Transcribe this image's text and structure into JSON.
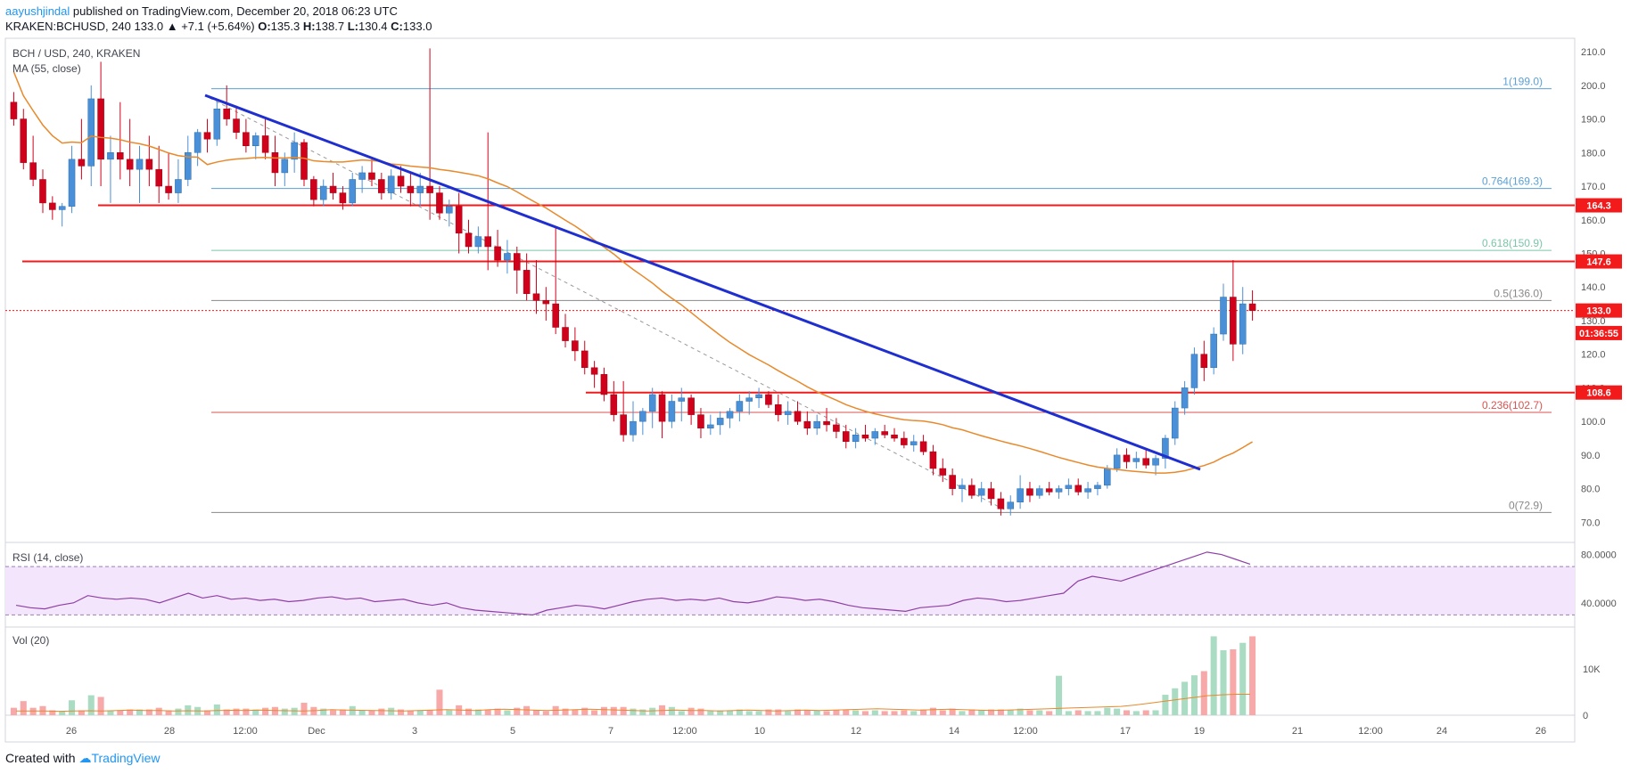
{
  "header": {
    "author": "aayushjindal",
    "published_text": " published on TradingView.com, December 20, 2018 06:23 UTC",
    "symbol": "KRAKEN:BCHUSD, 240",
    "last": "133.0",
    "change_arrow": "▲",
    "change": "+7.1 (+5.64%)",
    "ohlc_o_label": "O:",
    "ohlc_o": "135.3",
    "ohlc_h_label": "H:",
    "ohlc_h": "138.7",
    "ohlc_l_label": "L:",
    "ohlc_l": "130.4",
    "ohlc_c_label": "C:",
    "ohlc_c": "133.0"
  },
  "legend": {
    "pair": "BCH / USD, 240, KRAKEN",
    "ma": "MA (55, close)",
    "rsi": "RSI (14, close)",
    "vol": "Vol (20)"
  },
  "footer": {
    "created_with": "Created with",
    "brand": "TradingView"
  },
  "colors": {
    "up": "#4a90d9",
    "down": "#d0021b",
    "ma": "#e8892b",
    "trendline": "#1f2fcf",
    "resistance": "#f21a1a",
    "fib_blue": "#5aa1d6",
    "fib_green": "#7ac6a8",
    "fib_red": "#d9534f",
    "fib_grey": "#888888",
    "rsi_band": "#f3e5fb",
    "rsi_line": "#8e3fa6"
  },
  "chart_data": [
    {
      "type": "candlestick",
      "title": "BCH / USD, 240, KRAKEN",
      "ylim": [
        64,
        214
      ],
      "y_ticks": [
        "210.0",
        "200.0",
        "190.0",
        "180.0",
        "170.0",
        "160.0",
        "150.0",
        "140.0",
        "130.0",
        "120.0",
        "110.0",
        "100.0",
        "90.0",
        "80.0",
        "70.0"
      ],
      "x_ticks": [
        "26",
        "28",
        "12:00",
        "Dec",
        "3",
        "5",
        "7",
        "12:00",
        "10",
        "12",
        "14",
        "12:00",
        "17",
        "19",
        "21",
        "12:00",
        "24",
        "26"
      ],
      "price_tags": [
        {
          "label": "164.3",
          "value": 164.3,
          "color": "#f21a1a"
        },
        {
          "label": "147.6",
          "value": 147.6,
          "color": "#f21a1a"
        },
        {
          "label": "133.0",
          "value": 133.0,
          "color": "#f21a1a"
        },
        {
          "label": "01:36:55",
          "value": 126.3,
          "color": "#f21a1a"
        },
        {
          "label": "108.6",
          "value": 108.6,
          "color": "#f21a1a"
        }
      ],
      "resistance_lines": [
        164.3,
        147.6,
        108.6
      ],
      "fibonacci": [
        {
          "label": "1(199.0)",
          "value": 199.0,
          "color": "#5aa1d6"
        },
        {
          "label": "0.764(169.3)",
          "value": 169.3,
          "color": "#5aa1d6"
        },
        {
          "label": "0.618(150.9)",
          "value": 150.9,
          "color": "#7ac6a8"
        },
        {
          "label": "0.5(136.0)",
          "value": 136.0,
          "color": "#888888"
        },
        {
          "label": "0.236(102.7)",
          "value": 102.7,
          "color": "#d9534f"
        },
        {
          "label": "0(72.9)",
          "value": 72.9,
          "color": "#888888"
        }
      ],
      "ohlc": [
        [
          195,
          198,
          188,
          190
        ],
        [
          190,
          193,
          175,
          177
        ],
        [
          177,
          185,
          170,
          172
        ],
        [
          172,
          175,
          162,
          165
        ],
        [
          165,
          167,
          160,
          163
        ],
        [
          163,
          165,
          158,
          164
        ],
        [
          164,
          182,
          162,
          178
        ],
        [
          178,
          190,
          172,
          176
        ],
        [
          176,
          200,
          170,
          196
        ],
        [
          196,
          207,
          170,
          178
        ],
        [
          178,
          185,
          165,
          180
        ],
        [
          180,
          195,
          172,
          178
        ],
        [
          178,
          190,
          170,
          175
        ],
        [
          175,
          182,
          165,
          178
        ],
        [
          178,
          185,
          170,
          175
        ],
        [
          175,
          182,
          165,
          170
        ],
        [
          170,
          180,
          166,
          168
        ],
        [
          168,
          178,
          165,
          172
        ],
        [
          172,
          185,
          170,
          180
        ],
        [
          180,
          187,
          176,
          186
        ],
        [
          186,
          190,
          180,
          184
        ],
        [
          184,
          195,
          182,
          193
        ],
        [
          193,
          200,
          188,
          190
        ],
        [
          190,
          194,
          184,
          186
        ],
        [
          186,
          190,
          180,
          182
        ],
        [
          182,
          186,
          178,
          185
        ],
        [
          185,
          190,
          178,
          180
        ],
        [
          180,
          185,
          170,
          174
        ],
        [
          174,
          180,
          170,
          178
        ],
        [
          178,
          186,
          174,
          183
        ],
        [
          183,
          184,
          170,
          172
        ],
        [
          172,
          173,
          164,
          166
        ],
        [
          166,
          172,
          164,
          170
        ],
        [
          170,
          174,
          166,
          168
        ],
        [
          168,
          170,
          163,
          165
        ],
        [
          165,
          174,
          164,
          172
        ],
        [
          172,
          176,
          168,
          174
        ],
        [
          174,
          178,
          170,
          172
        ],
        [
          172,
          174,
          166,
          168
        ],
        [
          168,
          175,
          166,
          173
        ],
        [
          173,
          176,
          168,
          170
        ],
        [
          170,
          174,
          164,
          168
        ],
        [
          168,
          174,
          164,
          170
        ],
        [
          170,
          211,
          160,
          168
        ],
        [
          168,
          170,
          160,
          162
        ],
        [
          162,
          166,
          158,
          164
        ],
        [
          164,
          168,
          150,
          156
        ],
        [
          156,
          160,
          150,
          152
        ],
        [
          152,
          158,
          150,
          155
        ],
        [
          155,
          186,
          145,
          152
        ],
        [
          152,
          157,
          146,
          148
        ],
        [
          148,
          154,
          144,
          150
        ],
        [
          150,
          152,
          138,
          145
        ],
        [
          145,
          150,
          136,
          138
        ],
        [
          138,
          148,
          132,
          136
        ],
        [
          136,
          140,
          130,
          135
        ],
        [
          135,
          158,
          126,
          128
        ],
        [
          128,
          132,
          122,
          124
        ],
        [
          124,
          128,
          118,
          121
        ],
        [
          121,
          124,
          114,
          116
        ],
        [
          116,
          118,
          110,
          114
        ],
        [
          114,
          116,
          106,
          108
        ],
        [
          108,
          112,
          100,
          102
        ],
        [
          102,
          112,
          94,
          96
        ],
        [
          96,
          106,
          94,
          100
        ],
        [
          100,
          104,
          96,
          103
        ],
        [
          103,
          110,
          98,
          108
        ],
        [
          108,
          109,
          95,
          100
        ],
        [
          100,
          108,
          98,
          106
        ],
        [
          106,
          110,
          100,
          107
        ],
        [
          107,
          108,
          99,
          102
        ],
        [
          102,
          104,
          95,
          98
        ],
        [
          98,
          102,
          96,
          99
        ],
        [
          99,
          103,
          96,
          101
        ],
        [
          101,
          104,
          98,
          103
        ],
        [
          103,
          108,
          100,
          106
        ],
        [
          106,
          109,
          102,
          107
        ],
        [
          107,
          110,
          104,
          108
        ],
        [
          108,
          109,
          104,
          105
        ],
        [
          105,
          108,
          100,
          102
        ],
        [
          102,
          106,
          99,
          103
        ],
        [
          103,
          106,
          99,
          100
        ],
        [
          100,
          103,
          96,
          98
        ],
        [
          98,
          102,
          96,
          100
        ],
        [
          100,
          104,
          97,
          99
        ],
        [
          99,
          101,
          95,
          97
        ],
        [
          97,
          99,
          92,
          94
        ],
        [
          94,
          98,
          92,
          96
        ],
        [
          96,
          99,
          94,
          95
        ],
        [
          95,
          98,
          93,
          97
        ],
        [
          97,
          99,
          95,
          96
        ],
        [
          96,
          98,
          94,
          95
        ],
        [
          95,
          97,
          92,
          93
        ],
        [
          93,
          96,
          91,
          94
        ],
        [
          94,
          96,
          90,
          91
        ],
        [
          91,
          93,
          84,
          86
        ],
        [
          86,
          89,
          82,
          84
        ],
        [
          84,
          86,
          78,
          80
        ],
        [
          80,
          83,
          76,
          81
        ],
        [
          81,
          83,
          77,
          78
        ],
        [
          78,
          82,
          76,
          80
        ],
        [
          80,
          82,
          75,
          77
        ],
        [
          77,
          79,
          72,
          74
        ],
        [
          74,
          78,
          72,
          76
        ],
        [
          76,
          84,
          74,
          80
        ],
        [
          80,
          82,
          76,
          78
        ],
        [
          78,
          81,
          77,
          80
        ],
        [
          80,
          82,
          78,
          79
        ],
        [
          79,
          81,
          77,
          80
        ],
        [
          80,
          83,
          78,
          81
        ],
        [
          81,
          83,
          78,
          79
        ],
        [
          79,
          82,
          77,
          80
        ],
        [
          80,
          82,
          78,
          81
        ],
        [
          81,
          87,
          80,
          86
        ],
        [
          86,
          92,
          85,
          90
        ],
        [
          90,
          92,
          86,
          88
        ],
        [
          88,
          91,
          86,
          89
        ],
        [
          89,
          92,
          86,
          87
        ],
        [
          87,
          90,
          84,
          89
        ],
        [
          89,
          96,
          86,
          95
        ],
        [
          95,
          106,
          93,
          104
        ],
        [
          104,
          112,
          102,
          110
        ],
        [
          110,
          122,
          108,
          120
        ],
        [
          120,
          124,
          112,
          116
        ],
        [
          116,
          128,
          114,
          126
        ],
        [
          126,
          141,
          124,
          137
        ],
        [
          137,
          148,
          118,
          123
        ],
        [
          123,
          140,
          120,
          135
        ],
        [
          135,
          139,
          130,
          133
        ]
      ]
    },
    {
      "type": "line",
      "title": "RSI (14, close)",
      "ylim": [
        20,
        90
      ],
      "y_ticks": [
        "80.0000",
        "40.0000"
      ],
      "band": [
        30,
        70
      ],
      "values": [
        38,
        36,
        35,
        38,
        40,
        46,
        44,
        43,
        44,
        43,
        40,
        44,
        48,
        44,
        46,
        43,
        44,
        42,
        43,
        41,
        42,
        44,
        45,
        43,
        44,
        41,
        42,
        43,
        40,
        38,
        40,
        36,
        34,
        33,
        32,
        31,
        30,
        34,
        36,
        38,
        37,
        35,
        38,
        41,
        43,
        44,
        42,
        43,
        42,
        44,
        41,
        40,
        42,
        45,
        44,
        42,
        43,
        41,
        38,
        36,
        35,
        34,
        33,
        36,
        37,
        38,
        42,
        44,
        43,
        41,
        42,
        44,
        46,
        48,
        58,
        62,
        60,
        58,
        62,
        66,
        70,
        74,
        78,
        82,
        80,
        76,
        72
      ]
    },
    {
      "type": "bar",
      "title": "Vol (20)",
      "ylim": [
        0,
        19000
      ],
      "y_ticks": [
        "10K",
        "0"
      ],
      "ma_values": [
        900,
        900,
        900,
        850,
        900,
        950,
        900,
        1000,
        1100,
        1000,
        1000,
        900,
        950,
        900,
        1000,
        1050,
        1000,
        1100,
        1000,
        950,
        900,
        1000,
        1200,
        1100,
        1050,
        1000,
        950,
        900,
        1000,
        1100,
        1200,
        1100,
        1000,
        1200,
        1300,
        1200,
        1100,
        1000,
        1100,
        1200,
        1300,
        1200,
        1100,
        1000,
        900,
        1000,
        1100,
        1000,
        1000,
        900,
        1000,
        1100,
        1000,
        900,
        1000,
        1100,
        1000,
        1100,
        1200,
        1300,
        1400,
        1300,
        1200,
        1100,
        1200,
        1300,
        1200,
        1100,
        1000,
        1100,
        1200,
        1300,
        1400,
        1500,
        1600,
        1700,
        1800,
        1900,
        2200,
        2600,
        3000,
        3400,
        3800,
        4200,
        4400,
        4500,
        4500
      ]
    }
  ]
}
